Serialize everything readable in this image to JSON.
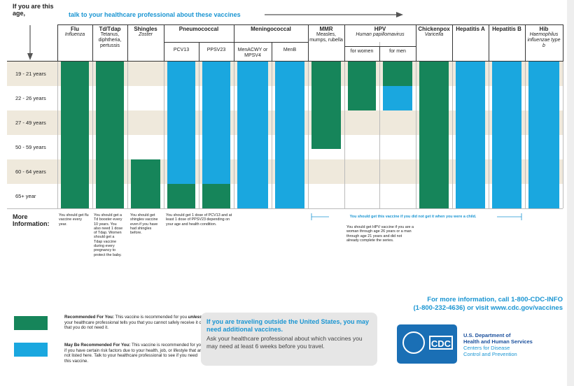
{
  "header": {
    "age_label": "If you are this age,",
    "instruction": "talk to your healthcare professional about these vaccines"
  },
  "vaccines": [
    {
      "name": "Flu",
      "desc": "Influenza"
    },
    {
      "name": "Td/Tdap",
      "desc": "Tetanus, diphtheria, pertussis"
    },
    {
      "name": "Shingles",
      "desc": "Zoster"
    },
    {
      "name": "Pneumococcal",
      "subs": [
        "PCV13",
        "PPSV23"
      ]
    },
    {
      "name": "Meningococcal",
      "subs": [
        "MenACWY or MPSV4",
        "MenB"
      ]
    },
    {
      "name": "MMR",
      "desc": "Measles, mumps, rubella"
    },
    {
      "name": "HPV",
      "desc": "Human papillomavirus",
      "subs": [
        "for women",
        "for men"
      ]
    },
    {
      "name": "Chickenpox",
      "desc": "Varicella"
    },
    {
      "name": "Hepatitis A"
    },
    {
      "name": "Hepatitis B"
    },
    {
      "name": "Hib",
      "desc": "Haemophilus influenzae type b"
    }
  ],
  "ages": [
    "19 - 21 years",
    "22 - 26 years",
    "27 - 49 years",
    "50 - 59 years",
    "60 - 64 years",
    "65+ year"
  ],
  "more_info": {
    "label": "More Information:",
    "flu": "You should get flu vaccine every year.",
    "td": "You should get a Td booster every 10 years. You also need 1 dose of Tdap. Women should get a Tdap vaccine during every pregnancy to protect the baby.",
    "shingles": "You should get shingles vaccine even if you have had shingles before.",
    "pneumococcal": "You should get 1 dose of PCV13 and at least 1 dose of PPSV23 depending on your age and health condition.",
    "childhood": "You should get this vaccine if you did not get it when you were a child.",
    "hpv": "You should get HPV vaccine if you are a woman through age 26 years or a man through age 21 years and did not already complete the series."
  },
  "legend": [
    {
      "title": "Recommended For You:",
      "text": [
        "This vaccine is recommended for you ",
        "unless",
        " your healthcare professional tells you that you cannot safely receive it or that you do not need it."
      ]
    },
    {
      "title": "May Be Recommended For You:",
      "text": [
        "This vaccine is recommended for you if you have certain risk factors due to your health, job, or lifestyle that are not listed here. Talk to your healthcare professional to see if you need this vaccine."
      ]
    }
  ],
  "travel": {
    "title": "If you are traveling outside the United States, you may need additional vaccines.",
    "text": "Ask your healthcare professional about which vaccines you may need at least 6 weeks before you travel."
  },
  "contact": [
    "For more information, call 1-800-CDC-INFO",
    "(1-800-232-4636) or visit www.cdc.gov/vaccines"
  ],
  "org": {
    "logo": "CDC",
    "lines": [
      "U.S. Department of",
      "Health and Human Services",
      "Centers for Disease",
      "Control and Prevention"
    ]
  }
}
